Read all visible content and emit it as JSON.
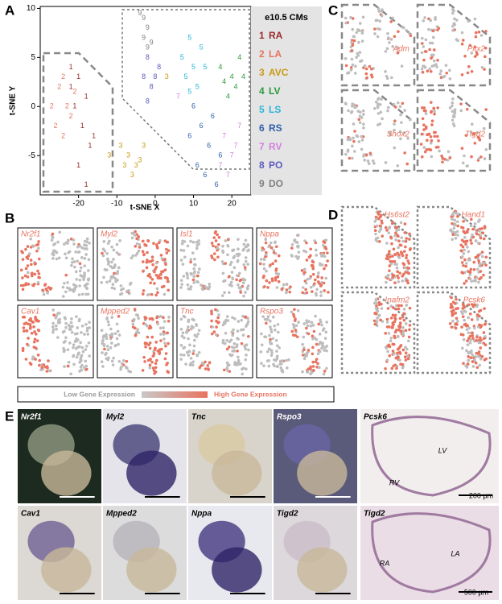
{
  "panel_labels": [
    "A",
    "B",
    "C",
    "D",
    "E"
  ],
  "chart_data": {
    "type": "scatter",
    "xlabel": "t-SNE X",
    "ylabel": "t-SNE Y",
    "xlim": [
      -30,
      25
    ],
    "ylim": [
      -9,
      10.2
    ],
    "xticks": [
      -20,
      -10,
      0,
      10,
      20
    ],
    "yticks": [
      -5,
      0,
      5,
      10
    ],
    "legend_title": "e10.5 CMs",
    "series": [
      {
        "label": "1",
        "name": "RA",
        "color": "#9b2a2a",
        "x": [
          -22,
          -20,
          -18,
          -21,
          -19,
          -17,
          -20,
          -18,
          -16,
          -22
        ],
        "values": [
          4,
          3,
          1,
          0,
          -2,
          -4,
          -6,
          -8,
          -3,
          2
        ]
      },
      {
        "label": "2",
        "name": "LA",
        "color": "#e8735f",
        "x": [
          -25,
          -23,
          -26,
          -24,
          -22,
          -27,
          -21,
          -24
        ],
        "values": [
          2,
          0,
          -2,
          3,
          -1,
          0,
          1.5,
          -3
        ]
      },
      {
        "label": "3",
        "name": "AVC",
        "color": "#c99a18",
        "x": [
          -7,
          -5,
          -3,
          -6,
          -4,
          -8,
          -12,
          3,
          -9
        ],
        "values": [
          -5,
          -6,
          -4,
          -7,
          -5.5,
          -6,
          -5,
          3,
          -4
        ]
      },
      {
        "label": "4",
        "name": "LV",
        "color": "#2a9a3a",
        "x": [
          17,
          20,
          22,
          19,
          21,
          23,
          18
        ],
        "values": [
          4,
          3,
          5,
          1,
          2,
          3,
          2.5
        ]
      },
      {
        "label": "5",
        "name": "LS",
        "color": "#2bb5d8",
        "x": [
          9,
          7,
          10,
          12,
          8,
          11,
          13,
          9
        ],
        "values": [
          7,
          5,
          4,
          6,
          3,
          2,
          4,
          1.5
        ]
      },
      {
        "label": "6",
        "name": "RS",
        "color": "#2d5fa8",
        "x": [
          10,
          12,
          14,
          11,
          15,
          13,
          17,
          9,
          16
        ],
        "values": [
          0,
          -2,
          -4,
          -6,
          -1,
          -7,
          -5,
          -3,
          -8
        ]
      },
      {
        "label": "7",
        "name": "RV",
        "color": "#d57fe0",
        "x": [
          18,
          20,
          22,
          19,
          21,
          6,
          17
        ],
        "values": [
          -3,
          -5,
          -2,
          -7,
          -4,
          1,
          -6
        ]
      },
      {
        "label": "8",
        "name": "PO",
        "color": "#5c5cc0",
        "x": [
          -3,
          -1,
          -2,
          0,
          1,
          -2
        ],
        "values": [
          3,
          2,
          5,
          3,
          4,
          0.5
        ]
      },
      {
        "label": "9",
        "name": "DO",
        "color": "#808080",
        "x": [
          -4,
          -2,
          -3,
          -1,
          -3,
          -2
        ],
        "values": [
          9.5,
          8,
          7,
          6.5,
          9,
          6
        ]
      }
    ]
  },
  "panel_b": {
    "genes": [
      "Nr2f1",
      "Myl2",
      "Isl1",
      "Nppa",
      "Cav1",
      "Mpped2",
      "Tnc",
      "Rspo3"
    ],
    "legend": {
      "low": "Low Gene Expression",
      "high": "High Gene Expression"
    }
  },
  "panel_c": {
    "genes": [
      "Adm",
      "Pitx2",
      "Shox2",
      "Tigd2"
    ]
  },
  "panel_d": {
    "genes": [
      "Hs6st2",
      "Hand1",
      "Inafm2",
      "Pcsk6"
    ]
  },
  "panel_e": {
    "images": [
      "Nr2f1",
      "Myl2",
      "Tnc",
      "Rspo3",
      "Pcsk6",
      "Cav1",
      "Mpped2",
      "Nppa",
      "Tigd2",
      "Tigd2"
    ],
    "annotations": {
      "lv": "LV",
      "rv": "RV",
      "scale_top": "200 µm",
      "la": "LA",
      "ra": "RA",
      "scale_bottom": "500 µm"
    }
  }
}
